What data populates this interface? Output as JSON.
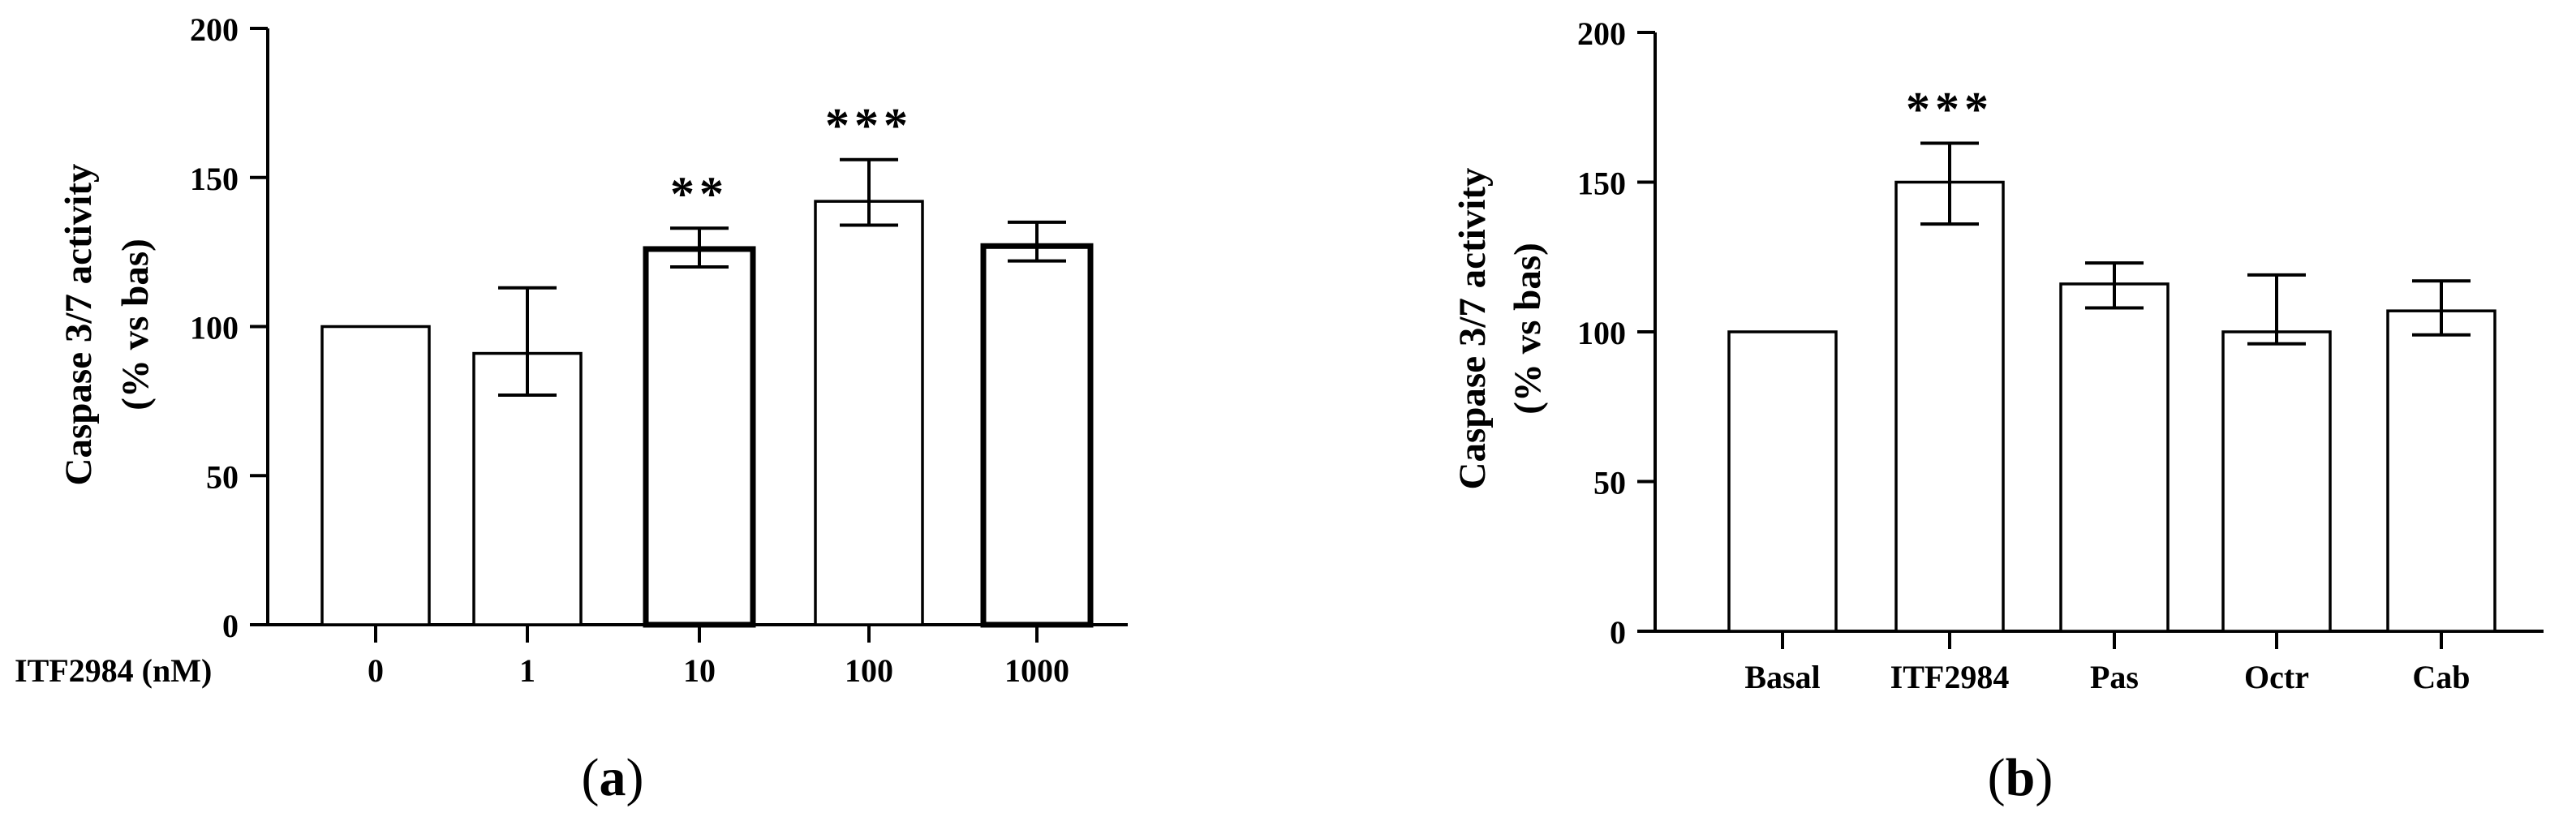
{
  "figure": {
    "panel_a_label": "a",
    "panel_b_label": "b"
  },
  "chart_data": [
    {
      "type": "bar",
      "panel": "a",
      "ylabel_line1": "Caspase 3/7 activity",
      "ylabel_line2": "(% vs bas)",
      "xlabel": "ITF2984 (nM)",
      "categories": [
        "0",
        "1",
        "10",
        "100",
        "1000"
      ],
      "values": [
        100,
        91,
        126,
        142,
        127
      ],
      "error_upper": [
        100,
        113,
        133,
        156,
        135
      ],
      "error_lower": [
        100,
        77,
        120,
        134,
        122
      ],
      "significance": [
        "",
        "",
        "**",
        "***",
        ""
      ],
      "bar_border_bold": [
        false,
        false,
        true,
        false,
        true
      ],
      "ylim": [
        0,
        200
      ],
      "yticks": [
        0,
        50,
        100,
        150,
        200
      ],
      "grid": false,
      "color": "#000000"
    },
    {
      "type": "bar",
      "panel": "b",
      "ylabel_line1": "Caspase 3/7 activity",
      "ylabel_line2": "(% vs bas)",
      "xlabel": "",
      "categories": [
        "Basal",
        "ITF2984",
        "Pas",
        "Octr",
        "Cab"
      ],
      "values": [
        100,
        150,
        116,
        100,
        107
      ],
      "error_upper": [
        100,
        163,
        123,
        119,
        117
      ],
      "error_lower": [
        100,
        136,
        108,
        96,
        99
      ],
      "significance": [
        "",
        "***",
        "",
        "",
        ""
      ],
      "bar_border_bold": [
        false,
        false,
        false,
        false,
        false
      ],
      "ylim": [
        0,
        200
      ],
      "yticks": [
        0,
        50,
        100,
        150,
        200
      ],
      "grid": false,
      "color": "#000000"
    }
  ]
}
